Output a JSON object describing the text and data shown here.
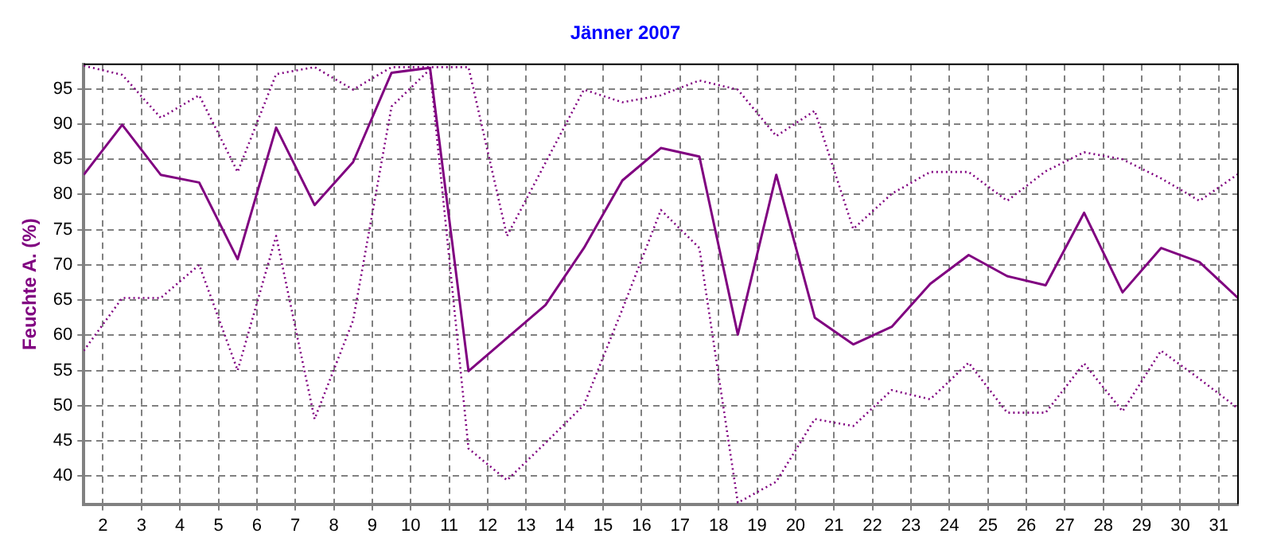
{
  "chart_data": {
    "type": "line",
    "title": "Jänner 2007",
    "ylabel": "Feuchte A. (%)",
    "x": [
      1.5,
      2.5,
      3.5,
      4.5,
      5.5,
      6.5,
      7.5,
      8.5,
      9.5,
      10.5,
      11.5,
      12.5,
      13.5,
      14.5,
      15.5,
      16.5,
      17.5,
      18.5,
      19.5,
      20.5,
      21.5,
      22.5,
      23.5,
      24.5,
      25.5,
      26.5,
      27.5,
      28.5,
      29.5,
      30.5,
      31.5
    ],
    "series": [
      {
        "color": "#800080",
        "line_style": "dotted",
        "values": [
          98.3,
          97.0,
          90.9,
          94.1,
          83.2,
          97.1,
          98.1,
          94.9,
          98.1,
          98.1,
          98.1,
          74.1,
          84.5,
          94.9,
          93.1,
          94.1,
          96.2,
          94.9,
          88.3,
          91.9,
          75.1,
          80.1,
          83.2,
          83.2,
          79.1,
          83.3,
          86.0,
          85.0,
          82.3,
          79.1,
          82.9
        ]
      },
      {
        "color": "#800080",
        "line_style": "solid",
        "values": [
          82.8,
          89.9,
          82.8,
          81.7,
          70.8,
          89.5,
          78.5,
          84.6,
          97.3,
          98.0,
          54.9,
          59.6,
          64.3,
          72.4,
          82.0,
          86.6,
          85.4,
          60.1,
          82.8,
          62.5,
          58.7,
          61.2,
          67.3,
          71.4,
          68.4,
          67.1,
          77.4,
          66.1,
          72.4,
          70.4,
          65.3
        ]
      },
      {
        "color": "#800080",
        "line_style": "dotted",
        "values": [
          57.8,
          65.3,
          65.3,
          70.0,
          55.0,
          74.1,
          48.1,
          62.1,
          92.5,
          97.8,
          43.9,
          39.4,
          44.7,
          50.1,
          63.7,
          77.8,
          72.4,
          36.2,
          39.2,
          48.1,
          47.1,
          52.2,
          50.9,
          56.1,
          49.0,
          49.0,
          56.0,
          49.2,
          57.8,
          53.8,
          49.6
        ]
      }
    ],
    "xlim": [
      1.5,
      31.5
    ],
    "xticks": [
      2,
      3,
      4,
      5,
      6,
      7,
      8,
      9,
      10,
      11,
      12,
      13,
      14,
      15,
      16,
      17,
      18,
      19,
      20,
      21,
      22,
      23,
      24,
      25,
      26,
      27,
      28,
      29,
      30,
      31
    ],
    "ylim": [
      36,
      98.5
    ],
    "yticks": [
      40,
      45,
      50,
      55,
      60,
      65,
      70,
      75,
      80,
      85,
      90,
      95
    ],
    "grid": true,
    "legend": false,
    "marker": "none"
  }
}
